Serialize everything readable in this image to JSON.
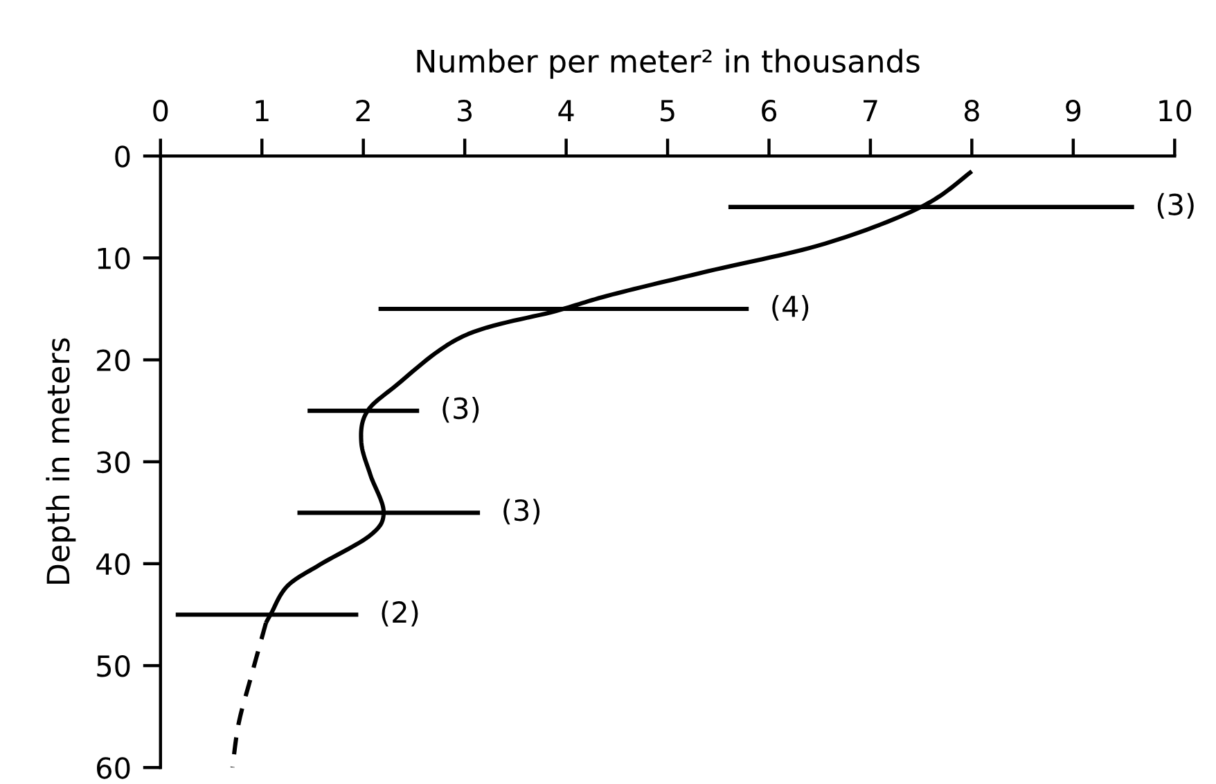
{
  "chart_data": {
    "type": "line",
    "xlabel": "Number per meter² in thousands",
    "ylabel": "Depth in meters",
    "xlim": [
      0,
      10
    ],
    "xticks": [
      0,
      1,
      2,
      3,
      4,
      5,
      6,
      7,
      8,
      9,
      10
    ],
    "ylim": [
      60,
      0
    ],
    "yticks": [
      0,
      10,
      20,
      30,
      40,
      50,
      60
    ],
    "grid": false,
    "line_style": "solid",
    "series": [
      {
        "color": "#000000",
        "x": [
          8.0,
          7.5,
          6.55,
          5.4,
          4.45,
          3.9,
          2.98,
          2.3,
          2.03,
          1.98,
          2.07,
          2.2,
          2.07,
          1.57,
          1.25,
          1.09,
          1.04
        ],
        "values": [
          1.5,
          5,
          8.6,
          11.3,
          13.6,
          15.2,
          17.7,
          22.7,
          25.2,
          28.1,
          31.3,
          34.9,
          37.2,
          40.1,
          42.2,
          44.9,
          45.8
        ]
      },
      {
        "color": "#000000",
        "line_style": "dashed",
        "x": [
          1.04,
          0.89,
          0.77,
          0.71
        ],
        "values": [
          45.8,
          51.2,
          55.7,
          60
        ]
      },
      {
        "color": "#000000",
        "x": [
          5.6,
          9.6
        ],
        "values": [
          5,
          5
        ]
      },
      {
        "color": "#000000",
        "x": [
          2.15,
          5.8
        ],
        "values": [
          15,
          15
        ]
      },
      {
        "color": "#000000",
        "x": [
          1.45,
          2.55
        ],
        "values": [
          25,
          25
        ]
      },
      {
        "color": "#000000",
        "x": [
          1.35,
          3.15
        ],
        "values": [
          35,
          35
        ]
      },
      {
        "color": "#000000",
        "x": [
          0.15,
          1.95
        ],
        "values": [
          45,
          45
        ]
      }
    ],
    "annotations": [
      {
        "text": "(3)",
        "x": 9.6,
        "y": 5
      },
      {
        "text": "(4)",
        "x": 5.8,
        "y": 15
      },
      {
        "text": "(3)",
        "x": 2.55,
        "y": 25
      },
      {
        "text": "(3)",
        "x": 3.15,
        "y": 35
      },
      {
        "text": "(2)",
        "x": 1.95,
        "y": 45
      }
    ]
  }
}
